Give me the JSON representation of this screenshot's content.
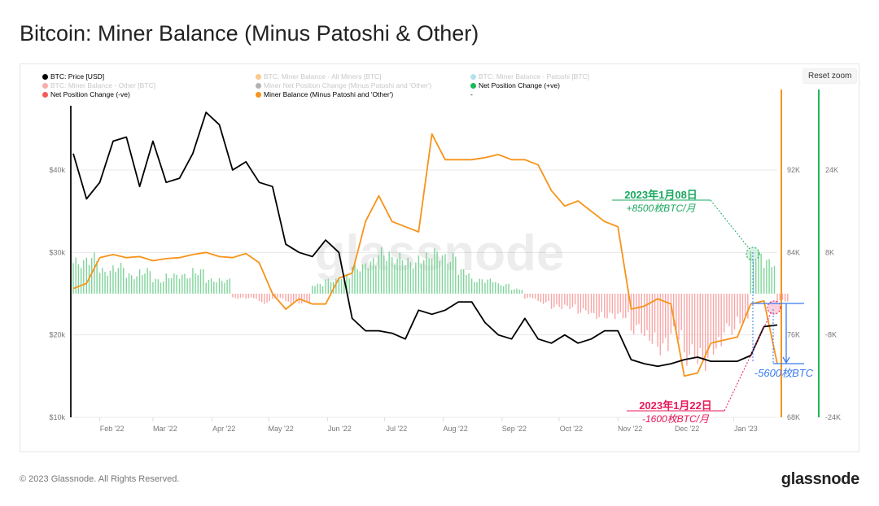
{
  "title": "Bitcoin: Miner Balance (Minus Patoshi & Other)",
  "reset_zoom": "Reset zoom",
  "watermark": "glassnode",
  "footer": "© 2023 Glassnode. All Rights Reserved.",
  "logo": "glassnode",
  "legend": [
    {
      "label": "BTC: Price [USD]",
      "color": "#000000",
      "faded": false
    },
    {
      "label": "BTC: Miner Balance - All Miners [BTC]",
      "color": "#f7931a",
      "faded": true
    },
    {
      "label": "BTC: Miner Balance - Patoshi [BTC]",
      "color": "#6ac6d8",
      "faded": true
    },
    {
      "label": "BTC: Miner Balance - Other [BTC]",
      "color": "#f45b5b",
      "faded": true
    },
    {
      "label": "Miner Net Position Change (Minus Patoshi and 'Other')",
      "color": "#666666",
      "faded": true
    },
    {
      "label": "Net Position Change (+ve)",
      "color": "#1db954",
      "faded": false
    },
    {
      "label": "Net Position Change (-ve)",
      "color": "#f45b5b",
      "faded": false
    },
    {
      "label": "Miner Balance (Minus Patoshi and 'Other')",
      "color": "#f7931a",
      "faded": false
    },
    {
      "label": "-",
      "color": "",
      "faded": false
    }
  ],
  "annotations": {
    "green_date": "2023年1月08日",
    "green_value": "+8500枚BTC/月",
    "red_date": "2023年1月22日",
    "red_value": "-1600枚BTC/月",
    "blue_value": "-5600枚BTC"
  },
  "colors": {
    "price": "#000000",
    "balance": "#f7931a",
    "pos": "#7fd49a",
    "neg": "#f8a5a5",
    "green_axis": "#1db954",
    "orange_axis": "#f7931a",
    "green_note": "#1aa860",
    "red_note": "#e8185a",
    "blue_note": "#3a7af0"
  },
  "chart_data": {
    "type": "line",
    "title": "Bitcoin: Miner Balance (Minus Patoshi & Other)",
    "x_ticks": [
      "Feb '22",
      "Mar '22",
      "Apr '22",
      "May '22",
      "Jun '22",
      "Jul '22",
      "Aug '22",
      "Sep '22",
      "Oct '22",
      "Nov '22",
      "Dec '22",
      "Jan '23"
    ],
    "x_tick_dates": [
      "2022-02-01",
      "2022-03-01",
      "2022-04-01",
      "2022-05-01",
      "2022-06-01",
      "2022-07-01",
      "2022-08-01",
      "2022-09-01",
      "2022-10-01",
      "2022-11-01",
      "2022-12-01",
      "2023-01-01"
    ],
    "x_range": [
      "2022-01-18",
      "2023-01-24"
    ],
    "y_left": {
      "ticks": [
        "$10k",
        "$20k",
        "$30k",
        "$40k"
      ],
      "range": [
        10000,
        40000
      ]
    },
    "y_right1": {
      "ticks": [
        "68K",
        "76K",
        "84K",
        "92K"
      ],
      "range": [
        68000,
        92000
      ]
    },
    "y_right2": {
      "ticks": [
        "-24K",
        "-8K",
        "8K",
        "24K"
      ],
      "range": [
        -24000,
        24000
      ]
    },
    "grid": true,
    "legend_position": "top",
    "dates": [
      "2022-01-18",
      "2022-01-25",
      "2022-02-01",
      "2022-02-08",
      "2022-02-15",
      "2022-02-22",
      "2022-03-01",
      "2022-03-08",
      "2022-03-15",
      "2022-03-22",
      "2022-03-29",
      "2022-04-05",
      "2022-04-12",
      "2022-04-19",
      "2022-04-26",
      "2022-05-03",
      "2022-05-10",
      "2022-05-17",
      "2022-05-24",
      "2022-05-31",
      "2022-06-07",
      "2022-06-14",
      "2022-06-21",
      "2022-06-28",
      "2022-07-05",
      "2022-07-12",
      "2022-07-19",
      "2022-07-26",
      "2022-08-02",
      "2022-08-09",
      "2022-08-16",
      "2022-08-23",
      "2022-08-30",
      "2022-09-06",
      "2022-09-13",
      "2022-09-20",
      "2022-09-27",
      "2022-10-04",
      "2022-10-11",
      "2022-10-18",
      "2022-10-25",
      "2022-11-01",
      "2022-11-08",
      "2022-11-15",
      "2022-11-22",
      "2022-11-29",
      "2022-12-06",
      "2022-12-13",
      "2022-12-20",
      "2022-12-27",
      "2023-01-03",
      "2023-01-10",
      "2023-01-17",
      "2023-01-24"
    ],
    "series": [
      {
        "name": "BTC: Price [USD]",
        "axis": "left",
        "values": [
          42000,
          36500,
          38500,
          43500,
          44000,
          38000,
          43500,
          38500,
          39000,
          42000,
          47000,
          45500,
          40000,
          41000,
          38500,
          38000,
          31000,
          30000,
          29500,
          31500,
          30000,
          22000,
          20500,
          20500,
          20200,
          19500,
          23000,
          22500,
          23000,
          24000,
          24000,
          21500,
          20000,
          19500,
          22000,
          19500,
          19000,
          20000,
          19000,
          19500,
          20500,
          20500,
          17000,
          16500,
          16200,
          16500,
          17000,
          17300,
          16800,
          16800,
          16800,
          17500,
          21000,
          21200
        ]
      },
      {
        "name": "Miner Balance (Minus Patoshi and 'Other')",
        "axis": "right1",
        "values": [
          80500,
          81000,
          83500,
          83800,
          83500,
          83600,
          83200,
          83400,
          83500,
          83800,
          84000,
          83600,
          83500,
          83900,
          83000,
          80000,
          78500,
          79500,
          79000,
          79000,
          81500,
          82000,
          87000,
          89500,
          87000,
          86500,
          86000,
          95500,
          93000,
          93000,
          93000,
          93200,
          93500,
          93000,
          93000,
          92500,
          90000,
          88500,
          89000,
          88000,
          87000,
          86500,
          78500,
          78800,
          79500,
          79000,
          72000,
          72300,
          75200,
          75500,
          75800,
          79000,
          79300,
          73200
        ]
      },
      {
        "name": "Net Position Change",
        "axis": "right2",
        "values": [
          7000,
          8000,
          5000,
          6000,
          4000,
          5000,
          3000,
          4000,
          4000,
          5000,
          3000,
          3000,
          -1000,
          -1000,
          -2000,
          -1000,
          -2000,
          -2000,
          2000,
          3000,
          4000,
          6000,
          7000,
          9000,
          8000,
          7000,
          8000,
          9000,
          8000,
          5000,
          3000,
          3000,
          2000,
          1000,
          -1000,
          -2000,
          -3000,
          -3000,
          -4000,
          -5000,
          -5000,
          -5000,
          -8000,
          -10000,
          -12000,
          -9000,
          -14000,
          -15000,
          -12000,
          -8000,
          -6000,
          8500,
          7000,
          -1600
        ]
      }
    ]
  }
}
